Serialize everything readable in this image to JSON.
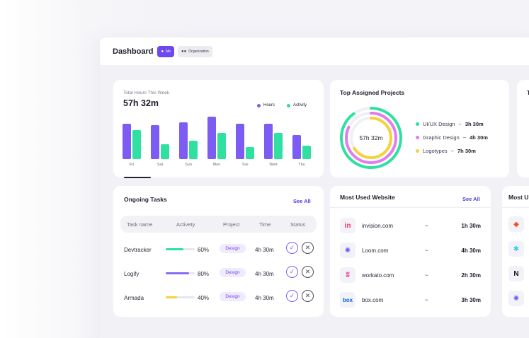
{
  "header": {
    "title": "Dashboard",
    "toggle": [
      {
        "label": "Me",
        "active": true,
        "icon": "user-icon"
      },
      {
        "label": "Organization",
        "active": false,
        "icon": "users-icon"
      }
    ]
  },
  "hours_card": {
    "label": "Total Hours This Week",
    "total": "57h 32m",
    "legend": [
      {
        "label": "Hours",
        "color": "#7c5cf2"
      },
      {
        "label": "Activity",
        "color": "#2fe0a0"
      }
    ]
  },
  "chart_data": {
    "type": "bar",
    "categories": [
      "Fri",
      "Sat",
      "Sun",
      "Mon",
      "Tue",
      "Wed",
      "Thu"
    ],
    "series": [
      {
        "name": "Hours",
        "values": [
          50,
          48,
          52,
          60,
          50,
          50,
          34
        ]
      },
      {
        "name": "Activity",
        "values": [
          41,
          21,
          26,
          37,
          17,
          37,
          19
        ]
      }
    ],
    "ylim": [
      0,
      60
    ],
    "grid": false,
    "legend": "top-right"
  },
  "projects_card": {
    "title": "Top Assigned Projects",
    "center_label": "57h 32m",
    "items": [
      {
        "name": "UI/UX Design",
        "sep": "~",
        "value": "3h 30m",
        "color": "#2fe0a0",
        "fraction": 0.9
      },
      {
        "name": "Graphic Design",
        "sep": "~",
        "value": "4h 30m",
        "color": "#e07cf0",
        "fraction": 0.82
      },
      {
        "name": "Logotypes",
        "sep": "~",
        "value": "7h 30m",
        "color": "#f5d23a",
        "fraction": 0.66
      }
    ]
  },
  "partial_card": {
    "title": "T"
  },
  "tasks_card": {
    "title": "Ongoing Tasks",
    "see_all": "See All",
    "columns": [
      "Task name",
      "Activety",
      "Project",
      "Time",
      "Status"
    ],
    "rows": [
      {
        "name": "Devtracker",
        "progress": 60,
        "pct": "60%",
        "color": "#2fe0a0",
        "tag": "Design",
        "time": "4h 30m"
      },
      {
        "name": "Logify",
        "progress": 80,
        "pct": "80%",
        "color": "#8c6cf2",
        "tag": "Design",
        "time": "4h 30m"
      },
      {
        "name": "Armada",
        "progress": 40,
        "pct": "40%",
        "color": "#f5d23a",
        "tag": "Design",
        "time": "4h 30m"
      }
    ]
  },
  "sites_card": {
    "title": "Most Used Website",
    "see_all": "See All",
    "rows": [
      {
        "name": "invision.com",
        "sep": "~",
        "time": "1h 30m",
        "icon": "invision-icon",
        "glyph": "in",
        "color": "#ff3366"
      },
      {
        "name": "Loom.com",
        "sep": "~",
        "time": "4h 30m",
        "icon": "loom-icon",
        "glyph": "✺",
        "color": "#625df5"
      },
      {
        "name": "workato.com",
        "sep": "~",
        "time": "2h 30m",
        "icon": "workato-icon",
        "glyph": "ʬ",
        "color": "#e8308c"
      },
      {
        "name": "box.com",
        "sep": "~",
        "time": "3h 30m",
        "icon": "box-icon",
        "glyph": "box",
        "color": "#0b61d6"
      }
    ]
  },
  "apps_card": {
    "title": "Most U",
    "icons": [
      {
        "icon": "figma-icon",
        "glyph": "◆",
        "color": "#f24e1e"
      },
      {
        "icon": "slack-icon",
        "glyph": "✱",
        "color": "#36c5f0"
      },
      {
        "icon": "notion-icon",
        "glyph": "N",
        "color": "#111111"
      },
      {
        "icon": "loom-icon",
        "glyph": "✺",
        "color": "#625df5"
      }
    ]
  }
}
